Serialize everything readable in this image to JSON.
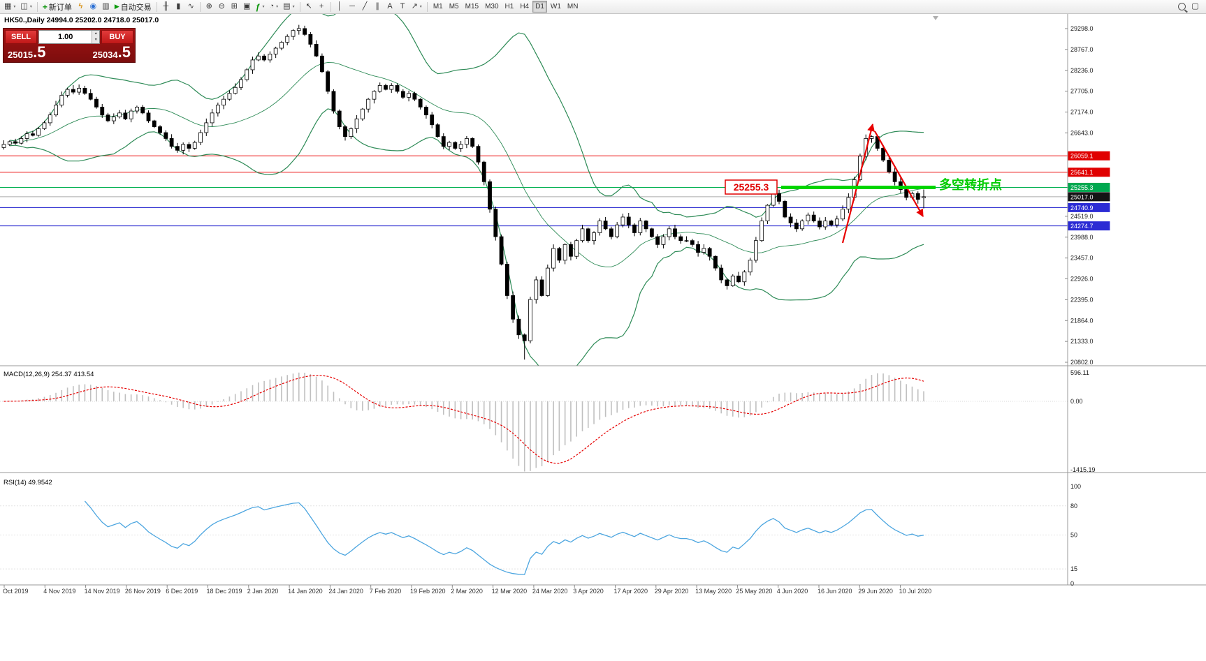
{
  "toolbar": {
    "groups": [
      {
        "items": [
          {
            "name": "new-chart-button",
            "glyph": "▦",
            "dropdown": true
          },
          {
            "name": "profiles-button",
            "glyph": "◫",
            "dropdown": true
          }
        ]
      },
      {
        "items": [
          {
            "name": "new-order-button",
            "glyph": "+",
            "cls": "neworder",
            "label": "新订单"
          },
          {
            "name": "metaeditor-button",
            "glyph": "ϟ",
            "cls": "lightning"
          },
          {
            "name": "market-watch-button",
            "glyph": "◉",
            "cls": "bluedot"
          },
          {
            "name": "data-window-button",
            "glyph": "▥"
          },
          {
            "name": "autotrading-button",
            "glyph": "▶",
            "cls": "auto",
            "label": "自动交易"
          }
        ]
      },
      {
        "items": [
          {
            "name": "bar-chart-button",
            "glyph": "╫"
          },
          {
            "name": "candlestick-chart-button",
            "glyph": "▮"
          },
          {
            "name": "line-chart-button",
            "glyph": "∿"
          }
        ]
      },
      {
        "items": [
          {
            "name": "zoom-in-button",
            "glyph": "⊕"
          },
          {
            "name": "zoom-out-button",
            "glyph": "⊖"
          },
          {
            "name": "tile-windows-button",
            "glyph": "⊞"
          },
          {
            "name": "auto-arrange-button",
            "glyph": "▣"
          },
          {
            "name": "indicators-button",
            "glyph": "ƒ",
            "cls": "neworder",
            "dropdown": true
          },
          {
            "name": "periods-button",
            "glyph": "◔",
            "dropdown": true
          },
          {
            "name": "templates-button",
            "glyph": "▤",
            "dropdown": true
          }
        ]
      },
      {
        "items": [
          {
            "name": "cursor-button",
            "glyph": "↖"
          },
          {
            "name": "crosshair-button",
            "glyph": "+"
          }
        ]
      },
      {
        "items": [
          {
            "name": "vertical-line-button",
            "glyph": "│"
          },
          {
            "name": "horizontal-line-button",
            "glyph": "─"
          },
          {
            "name": "trendline-button",
            "glyph": "╱"
          },
          {
            "name": "channel-button",
            "glyph": "∥"
          },
          {
            "name": "text-button",
            "glyph": "A"
          },
          {
            "name": "text-label-button",
            "glyph": "T"
          },
          {
            "name": "arrows-button",
            "glyph": "↗",
            "dropdown": true
          }
        ]
      },
      {
        "items": [
          {
            "name": "tf-m1-button",
            "label": "M1",
            "cls": "tf"
          },
          {
            "name": "tf-m5-button",
            "label": "M5",
            "cls": "tf"
          },
          {
            "name": "tf-m15-button",
            "label": "M15",
            "cls": "tf"
          },
          {
            "name": "tf-m30-button",
            "label": "M30",
            "cls": "tf"
          },
          {
            "name": "tf-h1-button",
            "label": "H1",
            "cls": "tf"
          },
          {
            "name": "tf-h4-button",
            "label": "H4",
            "cls": "tf"
          },
          {
            "name": "tf-d1-button",
            "label": "D1",
            "cls": "tf",
            "active": true
          },
          {
            "name": "tf-w1-button",
            "label": "W1",
            "cls": "tf"
          },
          {
            "name": "tf-mn-button",
            "label": "MN",
            "cls": "tf"
          }
        ]
      }
    ],
    "right_items": [
      {
        "name": "search-button",
        "type": "mag"
      },
      {
        "name": "window-button",
        "glyph": "▢"
      }
    ]
  },
  "chart_header": {
    "display": "HK50.,Daily  24994.0 25202.0 24718.0 25017.0"
  },
  "quote_panel": {
    "sell_label": "SELL",
    "buy_label": "BUY",
    "volume": "1.00",
    "sell_price_main": "25015",
    "sell_price_frac": ".5",
    "buy_price_main": "25034",
    "buy_price_frac": ".5"
  },
  "annotations": {
    "support_label": "25255.3",
    "turning_point_text": "多空转折点"
  },
  "price_axis": {
    "labels": [
      29298,
      28767,
      28236,
      27705,
      27174,
      26643,
      24519,
      23988,
      23457,
      22926,
      22395,
      21864,
      21333,
      20802
    ]
  },
  "price_tags": [
    {
      "price": 26059.1,
      "label": "26059.1",
      "color": "#e00000"
    },
    {
      "price": 25641.1,
      "label": "25641.1",
      "color": "#e00000"
    },
    {
      "price": 25255.3,
      "label": "25255.3",
      "color": "#00a84f"
    },
    {
      "price": 25017.0,
      "label": "25017.0",
      "color": "#141414"
    },
    {
      "price": 24740.9,
      "label": "24740.9",
      "color": "#2b2bd4"
    },
    {
      "price": 24274.7,
      "label": "24274.7",
      "color": "#2b2bd4"
    }
  ],
  "hlines": [
    {
      "price": 26059.1,
      "color": "#ee1111",
      "width": 1
    },
    {
      "price": 25641.1,
      "color": "#ee1111",
      "width": 1
    },
    {
      "price": 25255.3,
      "color": "#00b050",
      "width": 1
    },
    {
      "price": 25017.0,
      "color": "#aaaaaa",
      "width": 1
    },
    {
      "price": 24740.9,
      "color": "#1515cc",
      "width": 1
    },
    {
      "price": 24274.7,
      "color": "#1515cc",
      "width": 1
    }
  ],
  "indicators": {
    "macd": {
      "label": "MACD(12,26,9) 254.37 413.54",
      "scale": [
        "596.11",
        "0.00",
        "-1415.19"
      ]
    },
    "rsi": {
      "label": "RSI(14) 49.9542",
      "levels": [
        "100",
        "80",
        "50",
        "15",
        "0"
      ]
    }
  },
  "chart_data": {
    "type": "candlestick",
    "symbol": "HK50",
    "timeframe": "Daily",
    "dates": [
      "Oct 2019",
      "4 Nov 2019",
      "14 Nov 2019",
      "26 Nov 2019",
      "6 Dec 2019",
      "18 Dec 2019",
      "2 Jan 2020",
      "14 Jan 2020",
      "24 Jan 2020",
      "7 Feb 2020",
      "19 Feb 2020",
      "2 Mar 2020",
      "12 Mar 2020",
      "24 Mar 2020",
      "3 Apr 2020",
      "17 Apr 2020",
      "29 Apr 2020",
      "13 May 2020",
      "25 May 2020",
      "4 Jun 2020",
      "16 Jun 2020",
      "29 Jun 2020",
      "10 Jul 2020"
    ],
    "closes": [
      26350,
      26420,
      26380,
      26500,
      26620,
      26580,
      26750,
      26900,
      27100,
      27350,
      27600,
      27750,
      27680,
      27780,
      27650,
      27500,
      27300,
      27100,
      26950,
      27050,
      27150,
      27000,
      27200,
      27300,
      27150,
      26950,
      26800,
      26650,
      26500,
      26300,
      26200,
      26350,
      26250,
      26400,
      26650,
      26900,
      27150,
      27350,
      27500,
      27650,
      27800,
      28000,
      28250,
      28500,
      28600,
      28500,
      28650,
      28800,
      28950,
      29100,
      29250,
      29300,
      29150,
      28900,
      28600,
      28200,
      27700,
      27200,
      26800,
      26550,
      26750,
      27000,
      27250,
      27500,
      27700,
      27850,
      27750,
      27850,
      27700,
      27550,
      27650,
      27500,
      27300,
      27100,
      26850,
      26550,
      26300,
      26400,
      26250,
      26350,
      26500,
      26300,
      25900,
      25400,
      24700,
      24000,
      23300,
      22500,
      21900,
      21500,
      21350,
      22400,
      22900,
      22500,
      23200,
      23700,
      23400,
      23800,
      23500,
      23900,
      24200,
      23900,
      24100,
      24400,
      24200,
      24000,
      24300,
      24500,
      24300,
      24100,
      24400,
      24200,
      24000,
      23800,
      24000,
      24200,
      24000,
      23900,
      23900,
      23800,
      23600,
      23700,
      23500,
      23200,
      22900,
      22750,
      23000,
      22850,
      23100,
      23400,
      23900,
      24400,
      24800,
      25100,
      24900,
      24500,
      24350,
      24200,
      24400,
      24550,
      24400,
      24250,
      24400,
      24300,
      24450,
      24700,
      25000,
      25450,
      26050,
      26500,
      26550,
      26250,
      25950,
      25650,
      25400,
      25200,
      25000,
      25100,
      24950,
      25017
    ],
    "last_bar": {
      "open": 24994.0,
      "high": 25202.0,
      "low": 24718.0,
      "close": 25017.0
    },
    "bollinger": {
      "period": 20,
      "deviation": 2
    },
    "macd_params": {
      "fast": 12,
      "slow": 26,
      "signal": 9
    },
    "rsi_period": 14
  }
}
